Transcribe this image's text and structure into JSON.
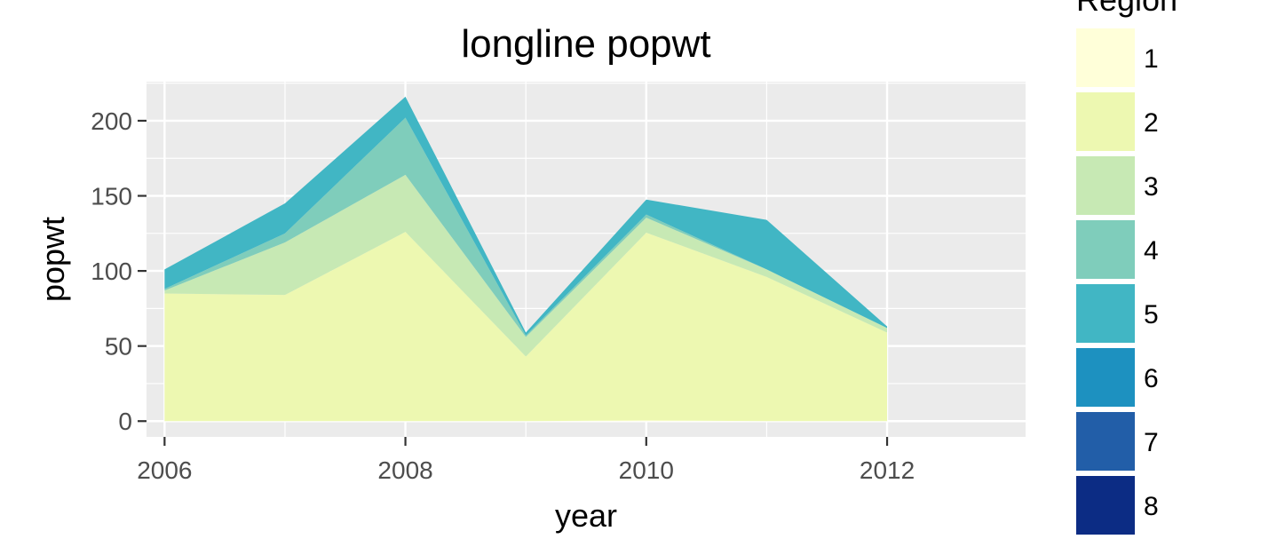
{
  "chart_data": {
    "type": "area",
    "stacked": true,
    "title": "longline popwt",
    "xlabel": "year",
    "ylabel": "popwt",
    "x": [
      2006,
      2007,
      2008,
      2009,
      2010,
      2011,
      2012
    ],
    "x_ticks": [
      "2006",
      "2008",
      "2010",
      "2012"
    ],
    "y_ticks": [
      "0",
      "50",
      "100",
      "150",
      "200"
    ],
    "xlim": [
      2005.85,
      2013.15
    ],
    "ylim": [
      -10.5,
      226
    ],
    "grid": true,
    "legend_placement": "right",
    "legend": {
      "title": "Region",
      "entries": [
        "1",
        "2",
        "3",
        "4",
        "5",
        "6",
        "7",
        "8"
      ]
    },
    "colors": {
      "panel": "#ebebeb",
      "grid": "#ffffff",
      "series": [
        "#ffffd9",
        "#edf8b1",
        "#c7e9b4",
        "#7fcdbb",
        "#41b6c4",
        "#1d91c0",
        "#225ea8",
        "#0c2c84"
      ]
    },
    "series": [
      {
        "name": "1",
        "values": [
          0,
          0,
          0,
          0,
          0.5,
          0,
          0
        ]
      },
      {
        "name": "2",
        "values": [
          85,
          84,
          126,
          43,
          125,
          96,
          59
        ]
      },
      {
        "name": "3",
        "values": [
          2,
          35,
          38,
          13,
          10,
          5,
          3
        ]
      },
      {
        "name": "4",
        "values": [
          1,
          6,
          38,
          1,
          2,
          0,
          0
        ]
      },
      {
        "name": "5",
        "values": [
          13,
          20,
          14,
          2,
          10,
          33,
          1
        ]
      },
      {
        "name": "6",
        "values": [
          0,
          0,
          0,
          0,
          0,
          0,
          0
        ]
      },
      {
        "name": "7",
        "values": [
          0,
          0,
          0,
          0,
          0,
          0,
          0
        ]
      },
      {
        "name": "8",
        "values": [
          0,
          0,
          0,
          0,
          0,
          0,
          0
        ]
      }
    ]
  }
}
